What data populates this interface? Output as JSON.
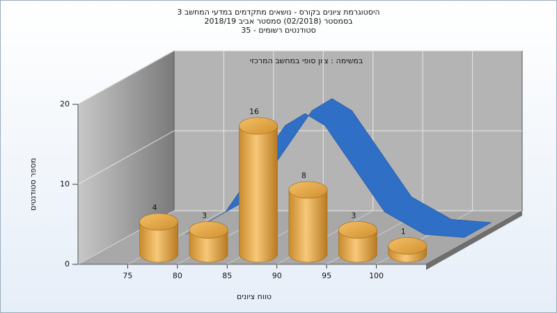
{
  "chart_data": {
    "type": "histogram",
    "title": "היסטוגרמת ציונים בקורס - נושאים מתקדמים במדעי המחשב 3",
    "subtitle": "בסמסטר  (02/2018)  סמסטר אביב 2018/19",
    "subtitle2": "סטודנטים רשומים - 35",
    "annotation": "במשימה : ציון סופי במחשב המרכזי",
    "x_label": "טווח ציונים",
    "y_label": "מספר סטודנטים",
    "bins": [
      75,
      80,
      85,
      90,
      95,
      100,
      105
    ],
    "values": [
      4,
      3,
      16,
      8,
      3,
      1
    ],
    "color": "#e8a53c",
    "curve": {
      "color": "#2f6fc6",
      "x": [
        76,
        80,
        84,
        86,
        88,
        90,
        92,
        96,
        100,
        104
      ],
      "values": [
        0.4,
        3.2,
        10.4,
        14,
        15.5,
        14,
        10.4,
        3.2,
        0.4,
        0
      ]
    },
    "xlim": [
      70,
      105
    ],
    "xticks": [
      75,
      80,
      85,
      90,
      95,
      100
    ],
    "ylim": [
      0,
      20
    ],
    "yticks": [
      0,
      10,
      20
    ],
    "grid": true
  }
}
